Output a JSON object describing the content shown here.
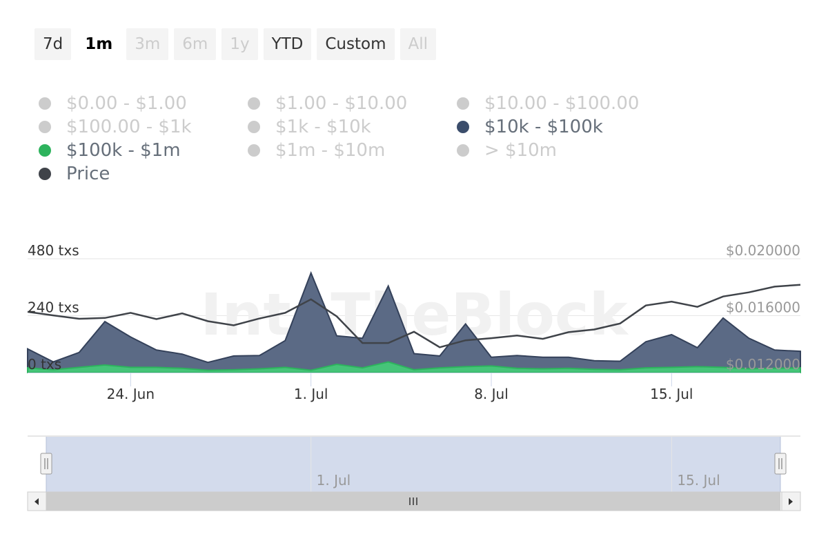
{
  "range_selector": {
    "buttons": [
      {
        "label": "7d",
        "state": "normal"
      },
      {
        "label": "1m",
        "state": "selected"
      },
      {
        "label": "3m",
        "state": "disabled"
      },
      {
        "label": "6m",
        "state": "disabled"
      },
      {
        "label": "1y",
        "state": "disabled"
      },
      {
        "label": "YTD",
        "state": "normal"
      },
      {
        "label": "Custom",
        "state": "normal"
      },
      {
        "label": "All",
        "state": "disabled"
      }
    ]
  },
  "legend": {
    "items": [
      {
        "label": "$0.00 - $1.00",
        "active": false,
        "color": "#cccccc"
      },
      {
        "label": "$1.00 - $10.00",
        "active": false,
        "color": "#cccccc"
      },
      {
        "label": "$10.00 - $100.00",
        "active": false,
        "color": "#cccccc"
      },
      {
        "label": "$100.00 - $1k",
        "active": false,
        "color": "#cccccc"
      },
      {
        "label": "$1k - $10k",
        "active": false,
        "color": "#cccccc"
      },
      {
        "label": "$10k - $100k",
        "active": true,
        "color": "#3b4d6b"
      },
      {
        "label": "$100k - $1m",
        "active": true,
        "color": "#2db35d"
      },
      {
        "label": "$1m - $10m",
        "active": false,
        "color": "#cccccc"
      },
      {
        "label": "> $10m",
        "active": false,
        "color": "#cccccc"
      },
      {
        "label": "Price",
        "active": true,
        "color": "#3f4349"
      }
    ]
  },
  "colors": {
    "area_10k_100k": "#5b6a85",
    "area_10k_100k_line": "#34415a",
    "area_100k_1m": "#46c479",
    "area_100k_1m_line": "#2db35d",
    "price_line": "#3f4349",
    "navigator_fill": "#d3dbec",
    "navigator_border": "#b5c0d8"
  },
  "chart_data": {
    "type": "area",
    "x": [
      "2023-06-20",
      "2023-06-21",
      "2023-06-22",
      "2023-06-23",
      "2023-06-24",
      "2023-06-25",
      "2023-06-26",
      "2023-06-27",
      "2023-06-28",
      "2023-06-29",
      "2023-06-30",
      "2023-07-01",
      "2023-07-02",
      "2023-07-03",
      "2023-07-04",
      "2023-07-05",
      "2023-07-06",
      "2023-07-07",
      "2023-07-08",
      "2023-07-09",
      "2023-07-10",
      "2023-07-11",
      "2023-07-12",
      "2023-07-13",
      "2023-07-14",
      "2023-07-15",
      "2023-07-16",
      "2023-07-17",
      "2023-07-18",
      "2023-07-19",
      "2023-07-20"
    ],
    "series": [
      {
        "name": "$10k - $100k",
        "axis": "left",
        "values": [
          100,
          45,
          85,
          215,
          150,
          95,
          78,
          43,
          70,
          72,
          135,
          420,
          155,
          145,
          365,
          80,
          70,
          205,
          65,
          72,
          65,
          65,
          50,
          48,
          130,
          160,
          105,
          230,
          145,
          95,
          90
        ]
      },
      {
        "name": "$100k - $1m",
        "axis": "left",
        "values": [
          20,
          12,
          22,
          32,
          22,
          22,
          18,
          10,
          12,
          16,
          22,
          10,
          35,
          20,
          45,
          12,
          20,
          25,
          28,
          18,
          16,
          18,
          14,
          12,
          20,
          22,
          25,
          22,
          16,
          18,
          20
        ]
      },
      {
        "name": "Price",
        "axis": "right",
        "values": [
          0.01627,
          0.01602,
          0.01578,
          0.01584,
          0.0162,
          0.01576,
          0.01616,
          0.01561,
          0.01532,
          0.0158,
          0.0162,
          0.01715,
          0.01595,
          0.01408,
          0.01408,
          0.01487,
          0.01378,
          0.01427,
          0.01442,
          0.01461,
          0.01437,
          0.01484,
          0.01503,
          0.01545,
          0.01672,
          0.01699,
          0.01662,
          0.01735,
          0.01764,
          0.01804,
          0.01817
        ]
      }
    ],
    "y_left": {
      "ticks": [
        "0 txs",
        "240 txs",
        "480 txs"
      ],
      "range": [
        0,
        480
      ]
    },
    "y_right": {
      "ticks": [
        "$0.012000",
        "$0.016000",
        "$0.020000"
      ],
      "range": [
        0.012,
        0.02
      ]
    },
    "x_ticks": [
      {
        "date": "2023-06-24",
        "label": "24. Jun"
      },
      {
        "date": "2023-07-01",
        "label": "1. Jul"
      },
      {
        "date": "2023-07-08",
        "label": "8. Jul"
      },
      {
        "date": "2023-07-15",
        "label": "15. Jul"
      }
    ],
    "watermark": "IntoTheBlock",
    "grid": true,
    "legend_position": "top-left"
  },
  "navigator": {
    "ticks": [
      {
        "date": "2023-07-01",
        "label": "1. Jul"
      },
      {
        "date": "2023-07-15",
        "label": "15. Jul"
      }
    ],
    "scroll_thumb_icon": "grip-lines-icon",
    "left_arrow_icon": "arrow-left-icon",
    "right_arrow_icon": "arrow-right-icon"
  }
}
